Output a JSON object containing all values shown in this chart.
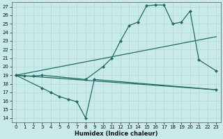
{
  "xlabel": "Humidex (Indice chaleur)",
  "bg_color": "#c8ebe9",
  "grid_color": "#b0d8d5",
  "line_color": "#1e6b65",
  "xlim": [
    -0.5,
    23.5
  ],
  "ylim": [
    13.5,
    27.5
  ],
  "yticks": [
    14,
    15,
    16,
    17,
    18,
    19,
    20,
    21,
    22,
    23,
    24,
    25,
    26,
    27
  ],
  "xticks": [
    0,
    1,
    2,
    3,
    4,
    5,
    6,
    7,
    8,
    9,
    10,
    11,
    12,
    13,
    14,
    15,
    16,
    17,
    18,
    19,
    20,
    21,
    22,
    23
  ],
  "series": [
    {
      "x": [
        0,
        1,
        2,
        3,
        8,
        10,
        11,
        12,
        13,
        14,
        15,
        16,
        17,
        18,
        19,
        20,
        21,
        23
      ],
      "y": [
        19,
        18.9,
        18.9,
        19.0,
        18.5,
        20.0,
        21.0,
        23.0,
        24.8,
        25.2,
        27.1,
        27.2,
        27.2,
        25.0,
        25.2,
        26.5,
        20.8,
        19.5
      ],
      "marker": "D",
      "markersize": 2.0,
      "linewidth": 0.9
    },
    {
      "x": [
        0,
        3,
        4,
        5,
        6,
        7,
        8,
        9,
        23
      ],
      "y": [
        19,
        17.5,
        17.0,
        16.5,
        16.2,
        15.9,
        14.0,
        18.5,
        17.3
      ],
      "marker": "D",
      "markersize": 2.0,
      "linewidth": 0.9
    },
    {
      "x": [
        0,
        23
      ],
      "y": [
        19,
        17.3
      ],
      "marker": null,
      "markersize": 0,
      "linewidth": 0.9
    },
    {
      "x": [
        0,
        23
      ],
      "y": [
        19,
        23.5
      ],
      "marker": null,
      "markersize": 0,
      "linewidth": 0.9
    }
  ]
}
